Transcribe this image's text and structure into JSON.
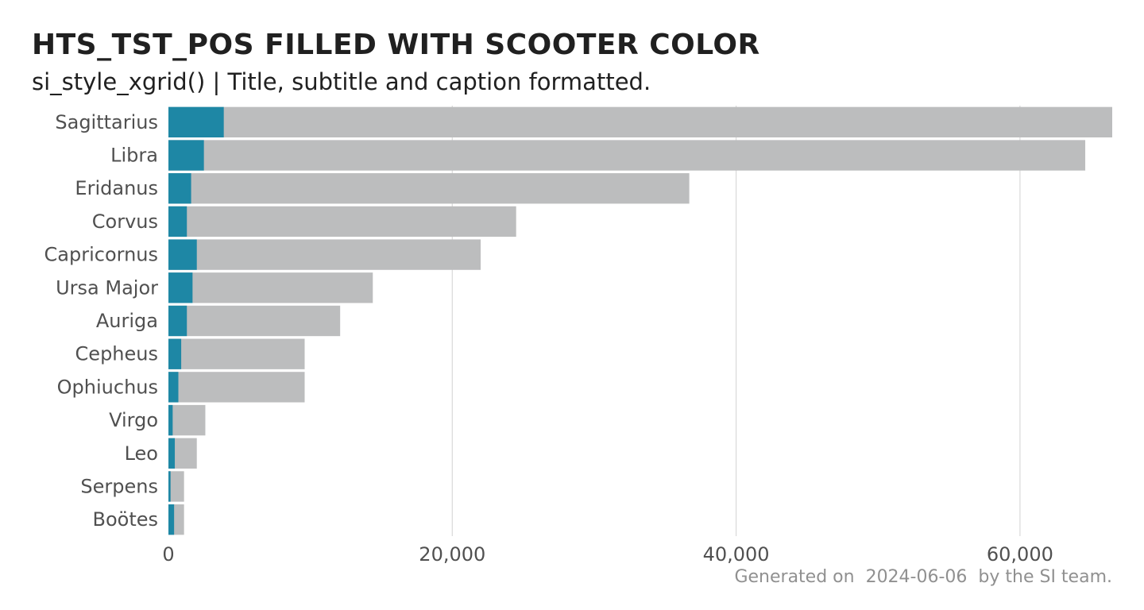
{
  "caption": "Generated on  2024-06-06  by the SI team.",
  "colors": {
    "tst_pos": "#1e87a5",
    "tst": "#bcbdbe",
    "grid": "#d9d9d9"
  },
  "chart_data": {
    "type": "bar",
    "orientation": "horizontal",
    "stacking": "overlay",
    "title": "HTS_TST_POS FILLED WITH SCOOTER COLOR",
    "subtitle": "si_style_xgrid() | Title, subtitle and caption formatted.",
    "xlabel": "",
    "ylabel": "",
    "xlim": [
      0,
      66500
    ],
    "x_ticks": [
      0,
      20000,
      40000,
      60000
    ],
    "x_tick_labels": [
      "0",
      "20,000",
      "40,000",
      "60,000"
    ],
    "grid": "x-major",
    "legend": "none",
    "categories": [
      "Sagittarius",
      "Libra",
      "Eridanus",
      "Corvus",
      "Capricornus",
      "Ursa Major",
      "Auriga",
      "Cepheus",
      "Ophiuchus",
      "Virgo",
      "Leo",
      "Serpens",
      "Boötes"
    ],
    "series": [
      {
        "values": [
          66500,
          64600,
          36700,
          24500,
          22000,
          14400,
          12100,
          9600,
          9600,
          2600,
          2000,
          1100,
          1100
        ]
      },
      {
        "values": [
          3900,
          2500,
          1600,
          1300,
          2000,
          1700,
          1300,
          900,
          700,
          300,
          450,
          150,
          400
        ]
      }
    ]
  }
}
